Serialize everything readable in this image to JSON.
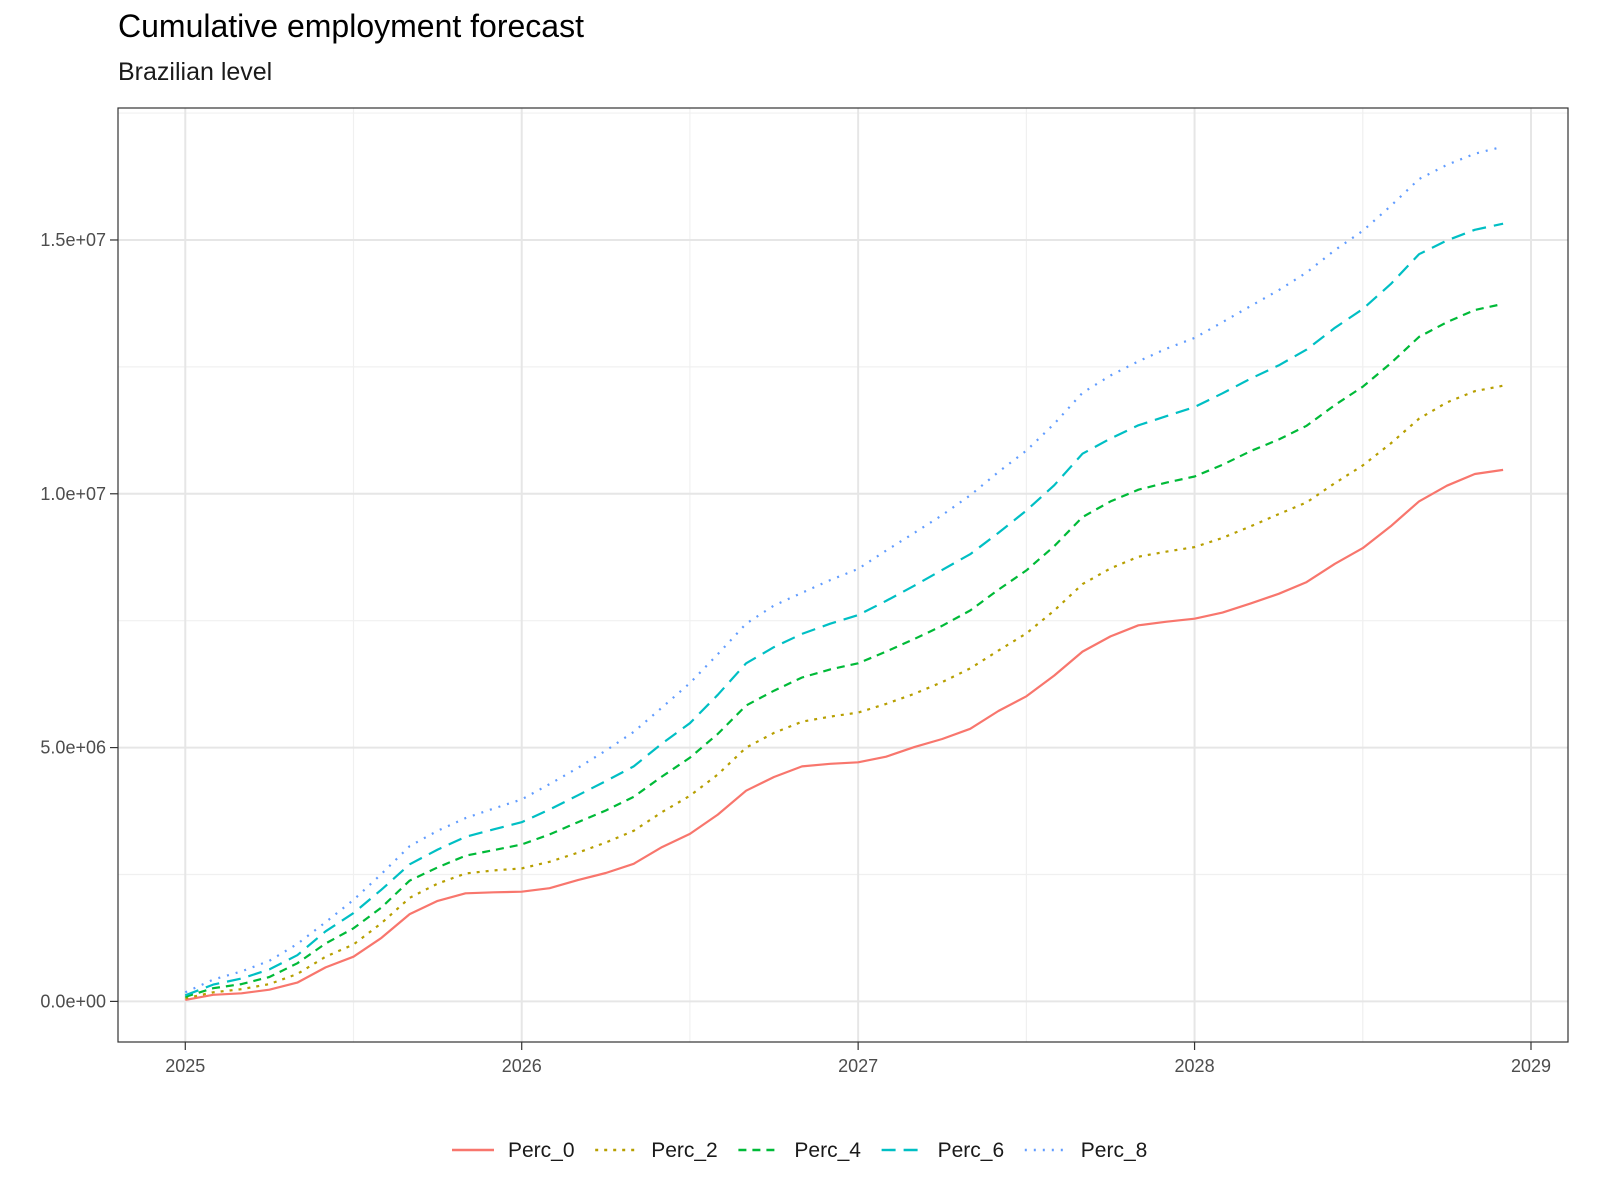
{
  "chart_data": {
    "type": "line",
    "title": "Cumulative employment forecast",
    "subtitle": "Brazilian level",
    "xlabel": "",
    "ylabel": "",
    "xlim": [
      2024.8,
      2029.11
    ],
    "ylim": [
      -800000,
      17600000
    ],
    "x_ticks": [
      2025,
      2026,
      2027,
      2028,
      2029
    ],
    "x_tick_labels": [
      "2025",
      "2026",
      "2027",
      "2028",
      "2029"
    ],
    "y_ticks": [
      0,
      5000000,
      10000000,
      15000000
    ],
    "y_tick_labels": [
      "0.0e+00",
      "5.0e+06",
      "1.0e+07",
      "1.5e+07"
    ],
    "grid": true,
    "legend_position": "bottom",
    "x": [
      2025.0,
      2025.083,
      2025.167,
      2025.25,
      2025.333,
      2025.417,
      2025.5,
      2025.583,
      2025.667,
      2025.75,
      2025.833,
      2025.917,
      2026.0,
      2026.083,
      2026.167,
      2026.25,
      2026.333,
      2026.417,
      2026.5,
      2026.583,
      2026.667,
      2026.75,
      2026.833,
      2026.917,
      2027.0,
      2027.083,
      2027.167,
      2027.25,
      2027.333,
      2027.417,
      2027.5,
      2027.583,
      2027.667,
      2027.75,
      2027.833,
      2027.917,
      2028.0,
      2028.083,
      2028.167,
      2028.25,
      2028.333,
      2028.417,
      2028.5,
      2028.583,
      2028.667,
      2028.75,
      2028.833,
      2028.917
    ],
    "series": [
      {
        "name": "Perc_0",
        "color": "#F8766D",
        "dash": "solid",
        "values": [
          30000,
          130000,
          160000,
          230000,
          370000,
          670000,
          880000,
          1250000,
          1720000,
          1980000,
          2130000,
          2150000,
          2160000,
          2230000,
          2390000,
          2530000,
          2710000,
          3040000,
          3300000,
          3680000,
          4150000,
          4420000,
          4630000,
          4680000,
          4710000,
          4820000,
          5010000,
          5170000,
          5370000,
          5720000,
          6010000,
          6420000,
          6890000,
          7190000,
          7410000,
          7480000,
          7540000,
          7660000,
          7840000,
          8030000,
          8260000,
          8620000,
          8930000,
          9360000,
          9850000,
          10160000,
          10390000,
          10470000
        ]
      },
      {
        "name": "Perc_2",
        "color": "#B79F00",
        "dash": "dotted",
        "values": [
          60000,
          180000,
          240000,
          340000,
          540000,
          880000,
          1120000,
          1540000,
          2040000,
          2320000,
          2520000,
          2580000,
          2620000,
          2750000,
          2930000,
          3130000,
          3360000,
          3730000,
          4050000,
          4470000,
          5000000,
          5290000,
          5510000,
          5610000,
          5690000,
          5860000,
          6060000,
          6290000,
          6560000,
          6910000,
          7250000,
          7700000,
          8220000,
          8530000,
          8760000,
          8860000,
          8950000,
          9130000,
          9360000,
          9600000,
          9830000,
          10210000,
          10560000,
          10990000,
          11480000,
          11800000,
          12020000,
          12130000
        ]
      },
      {
        "name": "Perc_4",
        "color": "#00BA38",
        "dash": "dashed",
        "values": [
          90000,
          260000,
          340000,
          480000,
          750000,
          1140000,
          1440000,
          1850000,
          2380000,
          2640000,
          2870000,
          2980000,
          3090000,
          3290000,
          3530000,
          3760000,
          4030000,
          4430000,
          4800000,
          5270000,
          5830000,
          6120000,
          6380000,
          6540000,
          6660000,
          6890000,
          7140000,
          7400000,
          7700000,
          8110000,
          8490000,
          8970000,
          9540000,
          9850000,
          10080000,
          10220000,
          10340000,
          10570000,
          10840000,
          11070000,
          11340000,
          11750000,
          12110000,
          12570000,
          13090000,
          13380000,
          13620000,
          13740000
        ]
      },
      {
        "name": "Perc_6",
        "color": "#00BFC4",
        "dash": "longdash",
        "values": [
          120000,
          330000,
          450000,
          630000,
          910000,
          1380000,
          1740000,
          2200000,
          2700000,
          2990000,
          3240000,
          3390000,
          3530000,
          3780000,
          4060000,
          4340000,
          4630000,
          5080000,
          5480000,
          6040000,
          6660000,
          6980000,
          7240000,
          7440000,
          7610000,
          7890000,
          8190000,
          8500000,
          8810000,
          9230000,
          9670000,
          10170000,
          10790000,
          11090000,
          11350000,
          11530000,
          11710000,
          11980000,
          12270000,
          12530000,
          12840000,
          13270000,
          13640000,
          14130000,
          14720000,
          14990000,
          15200000,
          15320000
        ]
      },
      {
        "name": "Perc_8",
        "color": "#619CFF",
        "dash": "dotdot",
        "values": [
          180000,
          430000,
          590000,
          800000,
          1130000,
          1560000,
          2000000,
          2510000,
          3060000,
          3360000,
          3610000,
          3800000,
          3980000,
          4280000,
          4600000,
          4940000,
          5310000,
          5790000,
          6270000,
          6840000,
          7440000,
          7800000,
          8050000,
          8300000,
          8520000,
          8880000,
          9230000,
          9580000,
          9970000,
          10430000,
          10850000,
          11380000,
          11990000,
          12330000,
          12610000,
          12860000,
          13070000,
          13380000,
          13700000,
          14010000,
          14360000,
          14800000,
          15180000,
          15670000,
          16200000,
          16480000,
          16700000,
          16840000
        ]
      }
    ]
  }
}
